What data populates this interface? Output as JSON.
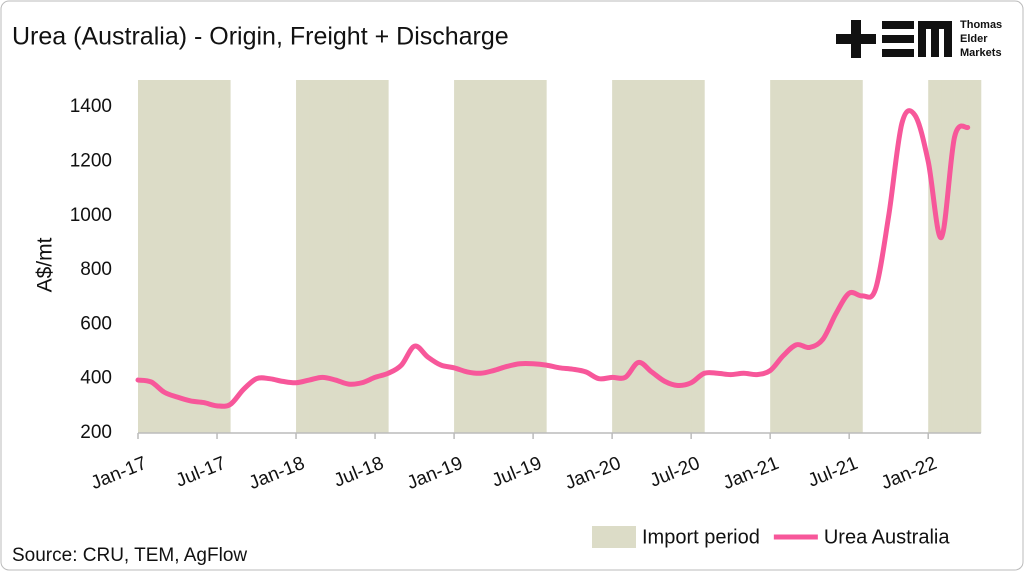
{
  "chart_data": {
    "type": "line",
    "title": "Urea (Australia) - Origin, Freight + Discharge",
    "y_label": "A$/mt",
    "source": "Source: CRU, TEM, AgFlow",
    "logo": [
      "Thomas",
      "Elder",
      "Markets"
    ],
    "categories": [
      "Jan-17",
      null,
      null,
      null,
      null,
      null,
      "Jul-17",
      null,
      null,
      null,
      null,
      null,
      "Jan-18",
      null,
      null,
      null,
      null,
      null,
      "Jul-18",
      null,
      null,
      null,
      null,
      null,
      "Jan-19",
      null,
      null,
      null,
      null,
      null,
      "Jul-19",
      null,
      null,
      null,
      null,
      null,
      "Jan-20",
      null,
      null,
      null,
      null,
      null,
      "Jul-20",
      null,
      null,
      null,
      null,
      null,
      "Jan-21",
      null,
      null,
      null,
      null,
      null,
      "Jul-21",
      null,
      null,
      null,
      null,
      null,
      "Jan-22",
      null,
      null,
      null
    ],
    "series": [
      {
        "name": "Import period",
        "type": "bar",
        "color": "#dcdcc7",
        "values": [
          1500,
          1500,
          1500,
          1500,
          1500,
          1500,
          1500,
          null,
          null,
          null,
          null,
          null,
          1500,
          1500,
          1500,
          1500,
          1500,
          1500,
          1500,
          null,
          null,
          null,
          null,
          null,
          1500,
          1500,
          1500,
          1500,
          1500,
          1500,
          1500,
          null,
          null,
          null,
          null,
          null,
          1500,
          1500,
          1500,
          1500,
          1500,
          1500,
          1500,
          null,
          null,
          null,
          null,
          null,
          1500,
          1500,
          1500,
          1500,
          1500,
          1500,
          1500,
          null,
          null,
          null,
          null,
          null,
          1500,
          1500,
          1500,
          1500
        ]
      },
      {
        "name": "Urea Australia",
        "type": "line",
        "color": "#f7579a",
        "values": [
          395,
          388,
          350,
          332,
          318,
          312,
          300,
          305,
          360,
          400,
          400,
          390,
          385,
          395,
          405,
          395,
          380,
          385,
          405,
          420,
          450,
          520,
          480,
          450,
          440,
          425,
          420,
          430,
          445,
          455,
          455,
          450,
          440,
          435,
          425,
          400,
          405,
          405,
          460,
          425,
          390,
          375,
          385,
          420,
          420,
          415,
          420,
          415,
          430,
          485,
          525,
          515,
          545,
          640,
          715,
          705,
          730,
          1000,
          1340,
          1370,
          1200,
          920,
          1290,
          1325
        ]
      }
    ],
    "ylim": [
      200,
      1500
    ],
    "yticks": [
      200,
      400,
      600,
      800,
      1000,
      1200,
      1400
    ],
    "grid": false,
    "legend": "bottom-right"
  }
}
